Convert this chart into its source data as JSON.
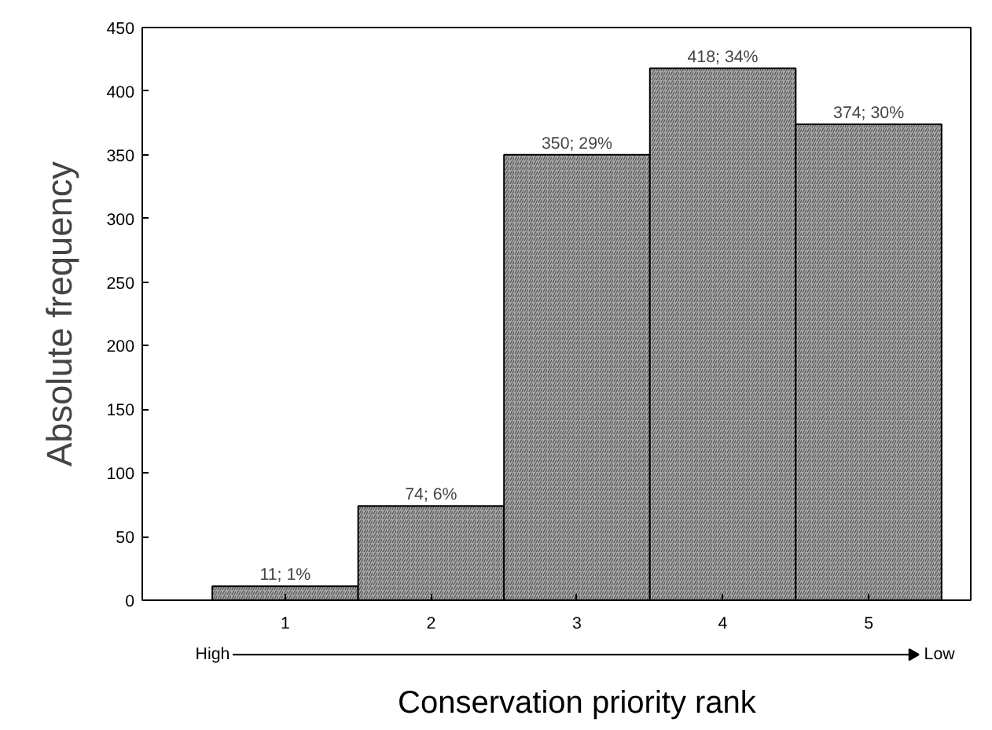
{
  "chart_data": {
    "type": "bar",
    "xlabel": "Conservation priority rank",
    "ylabel": "Absolute frequency",
    "categories": [
      "1",
      "2",
      "3",
      "4",
      "5"
    ],
    "values": [
      11,
      74,
      350,
      418,
      374
    ],
    "value_labels": [
      "11; 1%",
      "74; 6%",
      "350; 29%",
      "418; 34%",
      "374; 30%"
    ],
    "color": "#a8a8a8",
    "ylim": [
      0,
      450
    ],
    "yticks": [
      0,
      50,
      100,
      150,
      200,
      250,
      300,
      350,
      400,
      450
    ],
    "annotations": [
      "High",
      "Low"
    ],
    "grid": false
  }
}
